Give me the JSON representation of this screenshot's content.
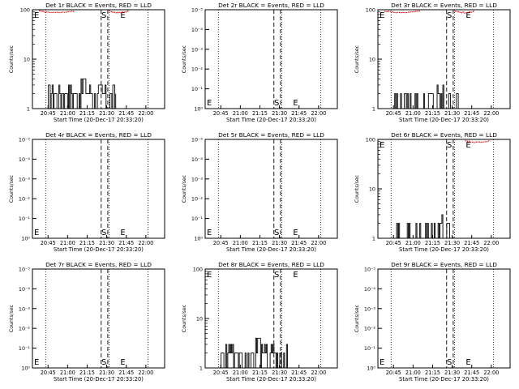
{
  "chart_data": [
    {
      "type": "line",
      "title": "Det 1r BLACK = Events, RED = LLD",
      "xlabel": "Start Time (20-Dec-17 20:33:20)",
      "ylabel": "Counts/sec",
      "yscale": "log",
      "ylim": [
        1,
        100
      ],
      "ytick_labels": [
        "1",
        "10",
        "100"
      ],
      "xtick_labels": [
        "20:45",
        "21:00",
        "21:15",
        "21:30",
        "21:45",
        "22:00"
      ],
      "markers": {
        "S": "S",
        "E": "E"
      },
      "has_red": true,
      "black_level": "mid"
    },
    {
      "type": "line",
      "title": "Det 2r BLACK = Events, RED = LLD",
      "xlabel": "Start Time (20-Dec-17 20:33:20)",
      "ylabel": "Counts/sec",
      "yscale": "log",
      "ylim": [
        1,
        1e-05
      ],
      "ytick_labels": [
        "10⁻⁵",
        "10⁻⁴",
        "10⁻³",
        "10⁻²",
        "10⁻¹",
        "10⁰"
      ],
      "xtick_labels": [
        "20:45",
        "21:00",
        "21:15",
        "21:30",
        "21:45",
        "22:00"
      ],
      "markers": {
        "S": "S",
        "E": "E"
      },
      "has_red": false,
      "black_level": "none"
    },
    {
      "type": "line",
      "title": "Det 3r BLACK = Events, RED = LLD",
      "xlabel": "Start Time (20-Dec-17 20:33:20)",
      "ylabel": "Counts/sec",
      "yscale": "log",
      "ylim": [
        1,
        100
      ],
      "ytick_labels": [
        "1",
        "10",
        "100"
      ],
      "xtick_labels": [
        "20:45",
        "21:00",
        "21:15",
        "21:30",
        "21:45",
        "22:00"
      ],
      "markers": {
        "S": "S",
        "E": "E"
      },
      "has_red": true,
      "black_level": "low"
    },
    {
      "type": "line",
      "title": "Det 4r BLACK = Events, RED = LLD",
      "xlabel": "Start Time (20-Dec-17 20:33:20)",
      "ylabel": "Counts/sec",
      "yscale": "log",
      "ylim": [
        1,
        1e-05
      ],
      "ytick_labels": [
        "10⁻⁵",
        "10⁻⁴",
        "10⁻³",
        "10⁻²",
        "10⁻¹",
        "10⁰"
      ],
      "xtick_labels": [
        "20:45",
        "21:00",
        "21:15",
        "21:30",
        "21:45",
        "22:00"
      ],
      "markers": {
        "S": "S",
        "E": "E"
      },
      "has_red": false,
      "black_level": "none"
    },
    {
      "type": "line",
      "title": "Det 5r BLACK = Events, RED = LLD",
      "xlabel": "Start Time (20-Dec-17 20:33:20)",
      "ylabel": "Counts/sec",
      "yscale": "log",
      "ylim": [
        1,
        1e-05
      ],
      "ytick_labels": [
        "10⁻⁵",
        "10⁻⁴",
        "10⁻³",
        "10⁻²",
        "10⁻¹",
        "10⁰"
      ],
      "xtick_labels": [
        "20:45",
        "21:00",
        "21:15",
        "21:30",
        "21:45",
        "22:00"
      ],
      "markers": {
        "S": "S",
        "E": "E"
      },
      "has_red": false,
      "black_level": "none"
    },
    {
      "type": "line",
      "title": "Det 6r BLACK = Events, RED = LLD",
      "xlabel": "Start Time (20-Dec-17 20:33:20)",
      "ylabel": "Counts/sec",
      "yscale": "log",
      "ylim": [
        1,
        100
      ],
      "ytick_labels": [
        "1",
        "10",
        "100"
      ],
      "xtick_labels": [
        "20:45",
        "21:00",
        "21:15",
        "21:30",
        "21:45",
        "22:00"
      ],
      "markers": {
        "S": "S",
        "E": "E"
      },
      "has_red": true,
      "black_level": "low"
    },
    {
      "type": "line",
      "title": "Det 7r BLACK = Events, RED = LLD",
      "xlabel": "Start Time (20-Dec-17 20:33:20)",
      "ylabel": "Counts/sec",
      "yscale": "log",
      "ylim": [
        1,
        1e-05
      ],
      "ytick_labels": [
        "10⁻⁵",
        "10⁻⁴",
        "10⁻³",
        "10⁻²",
        "10⁻¹",
        "10⁰"
      ],
      "xtick_labels": [
        "20:45",
        "21:00",
        "21:15",
        "21:30",
        "21:45",
        "22:00"
      ],
      "markers": {
        "S": "S",
        "E": "E"
      },
      "has_red": false,
      "black_level": "none"
    },
    {
      "type": "line",
      "title": "Det 8r BLACK = Events, RED = LLD",
      "xlabel": "Start Time (20-Dec-17 20:33:20)",
      "ylabel": "Counts/sec",
      "yscale": "log",
      "ylim": [
        1,
        100
      ],
      "ytick_labels": [
        "1",
        "10",
        "100"
      ],
      "xtick_labels": [
        "20:45",
        "21:00",
        "21:15",
        "21:30",
        "21:45",
        "22:00"
      ],
      "markers": {
        "S": "S",
        "E": "E"
      },
      "has_red": false,
      "black_level": "mid"
    },
    {
      "type": "line",
      "title": "Det 9r BLACK = Events, RED = LLD",
      "xlabel": "Start Time (20-Dec-17 20:33:20)",
      "ylabel": "Counts/sec",
      "yscale": "log",
      "ylim": [
        1,
        1e-05
      ],
      "ytick_labels": [
        "10⁻⁵",
        "10⁻⁴",
        "10⁻³",
        "10⁻²",
        "10⁻¹",
        "10⁰"
      ],
      "xtick_labels": [
        "20:45",
        "21:00",
        "21:15",
        "21:30",
        "21:45",
        "22:00"
      ],
      "markers": {
        "S": "S",
        "E": "E"
      },
      "has_red": false,
      "black_level": "none"
    }
  ],
  "colors": {
    "events": "#000000",
    "lld": "#e01010",
    "background": "#ffffff"
  }
}
